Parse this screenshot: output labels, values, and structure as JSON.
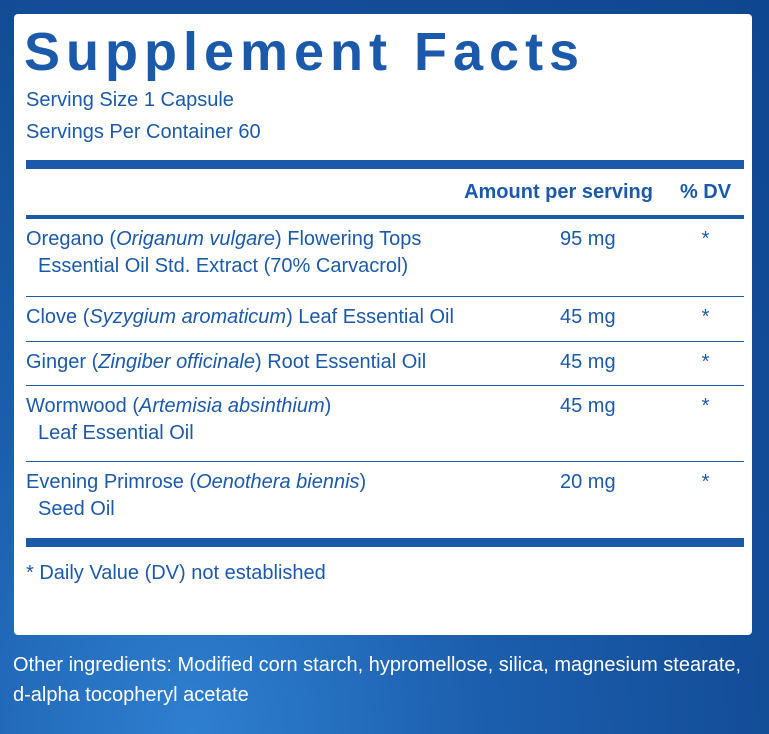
{
  "title": "Supplement Facts",
  "serving_size": "Serving Size 1 Capsule",
  "servings_per_container": "Servings Per Container 60",
  "header": {
    "amount": "Amount per serving",
    "dv": "% DV"
  },
  "ingredients": [
    {
      "name_pre": "Oregano (",
      "latin": "Origanum vulgare",
      "name_post": ") Flowering Tops",
      "line2": "Essential Oil Std. Extract (70% Carvacrol)",
      "amount": "95 mg",
      "dv": "*"
    },
    {
      "name_pre": "Clove (",
      "latin": "Syzygium aromaticum",
      "name_post": ") Leaf Essential Oil",
      "line2": "",
      "amount": "45 mg",
      "dv": "*"
    },
    {
      "name_pre": "Ginger (",
      "latin": "Zingiber officinale",
      "name_post": ") Root Essential Oil",
      "line2": "",
      "amount": "45 mg",
      "dv": "*"
    },
    {
      "name_pre": "Wormwood (",
      "latin": "Artemisia absinthium",
      "name_post": ")",
      "line2": "Leaf Essential Oil",
      "amount": "45 mg",
      "dv": "*"
    },
    {
      "name_pre": "Evening Primrose (",
      "latin": "Oenothera biennis",
      "name_post": ")",
      "line2": "Seed Oil",
      "amount": "20 mg",
      "dv": "*"
    }
  ],
  "footnote": "* Daily Value (DV) not established",
  "other_ingredients": "Other ingredients: Modified corn starch, hypromellose, silica, magnesium stearate, d-alpha tocopheryl acetate",
  "colors": {
    "brand_blue": "#1b5aab",
    "background_blue": "#134d98"
  }
}
